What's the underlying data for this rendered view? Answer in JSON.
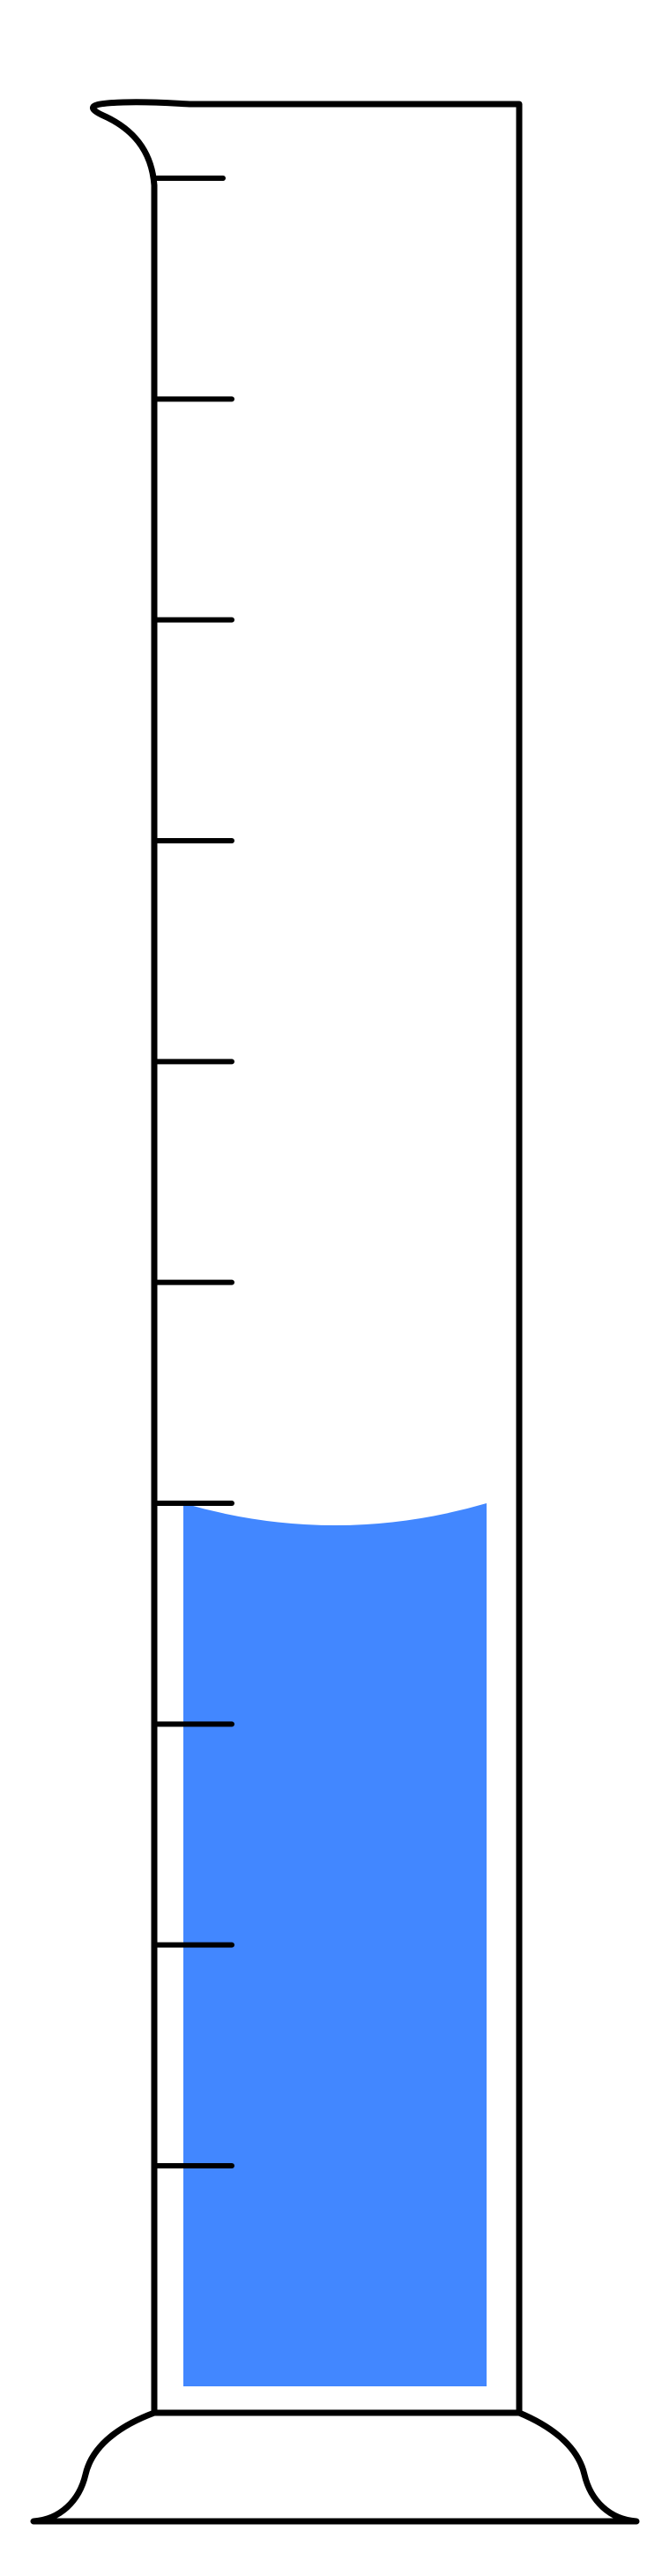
{
  "diagram": {
    "type": "graduated-cylinder",
    "graduation_count": 10,
    "fill_fraction": 0.4,
    "liquid_color": "#4287FF",
    "outline_color": "#000000",
    "background_color": "#FFFFFF"
  }
}
